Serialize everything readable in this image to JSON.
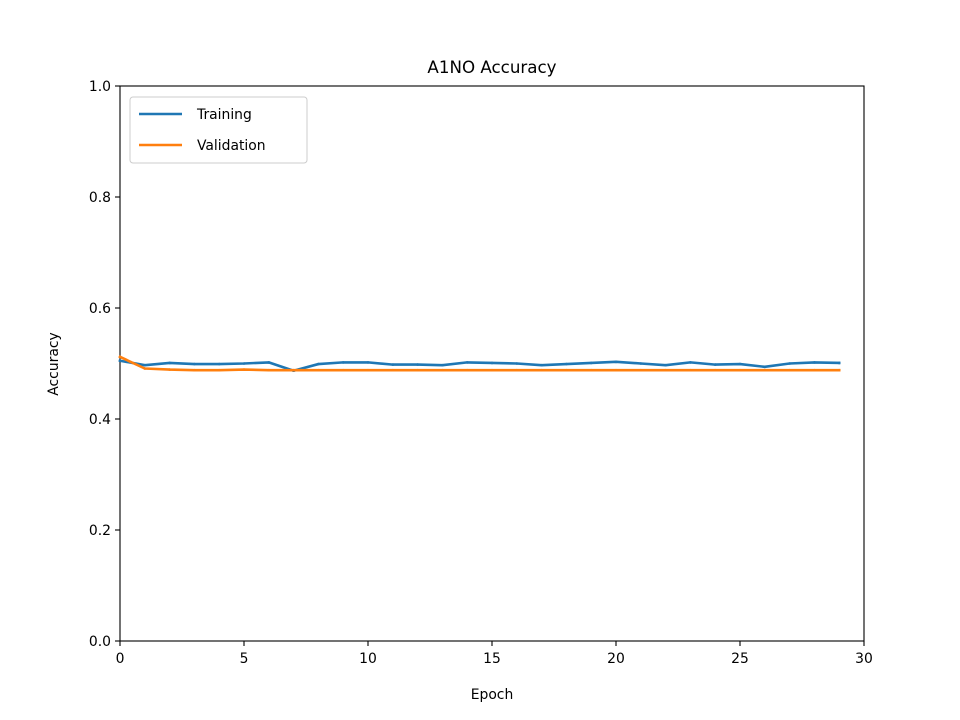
{
  "chart_data": {
    "type": "line",
    "title": "A1NO Accuracy",
    "xlabel": "Epoch",
    "ylabel": "Accuracy",
    "xlim": [
      0,
      30
    ],
    "ylim": [
      0.0,
      1.0
    ],
    "xticks": [
      0,
      5,
      10,
      15,
      20,
      25,
      30
    ],
    "yticks": [
      0.0,
      0.2,
      0.4,
      0.6,
      0.8,
      1.0
    ],
    "xtick_labels": [
      "0",
      "5",
      "10",
      "15",
      "20",
      "25",
      "30"
    ],
    "ytick_labels": [
      "0.0",
      "0.2",
      "0.4",
      "0.6",
      "0.8",
      "1.0"
    ],
    "grid": false,
    "legend_position": "top-left",
    "x": [
      0,
      1,
      2,
      3,
      4,
      5,
      6,
      7,
      8,
      9,
      10,
      11,
      12,
      13,
      14,
      15,
      16,
      17,
      18,
      19,
      20,
      21,
      22,
      23,
      24,
      25,
      26,
      27,
      28,
      29
    ],
    "series": [
      {
        "name": "Training",
        "color": "#1f77b4",
        "values": [
          0.505,
          0.497,
          0.501,
          0.499,
          0.499,
          0.5,
          0.502,
          0.487,
          0.499,
          0.502,
          0.502,
          0.498,
          0.498,
          0.497,
          0.502,
          0.501,
          0.5,
          0.497,
          0.499,
          0.501,
          0.503,
          0.5,
          0.497,
          0.502,
          0.498,
          0.499,
          0.494,
          0.5,
          0.502,
          0.501
        ]
      },
      {
        "name": "Validation",
        "color": "#ff7f0e",
        "values": [
          0.512,
          0.491,
          0.489,
          0.488,
          0.488,
          0.489,
          0.488,
          0.488,
          0.488,
          0.488,
          0.488,
          0.488,
          0.488,
          0.488,
          0.488,
          0.488,
          0.488,
          0.488,
          0.488,
          0.488,
          0.488,
          0.488,
          0.488,
          0.488,
          0.488,
          0.488,
          0.488,
          0.488,
          0.488,
          0.488
        ]
      }
    ]
  }
}
